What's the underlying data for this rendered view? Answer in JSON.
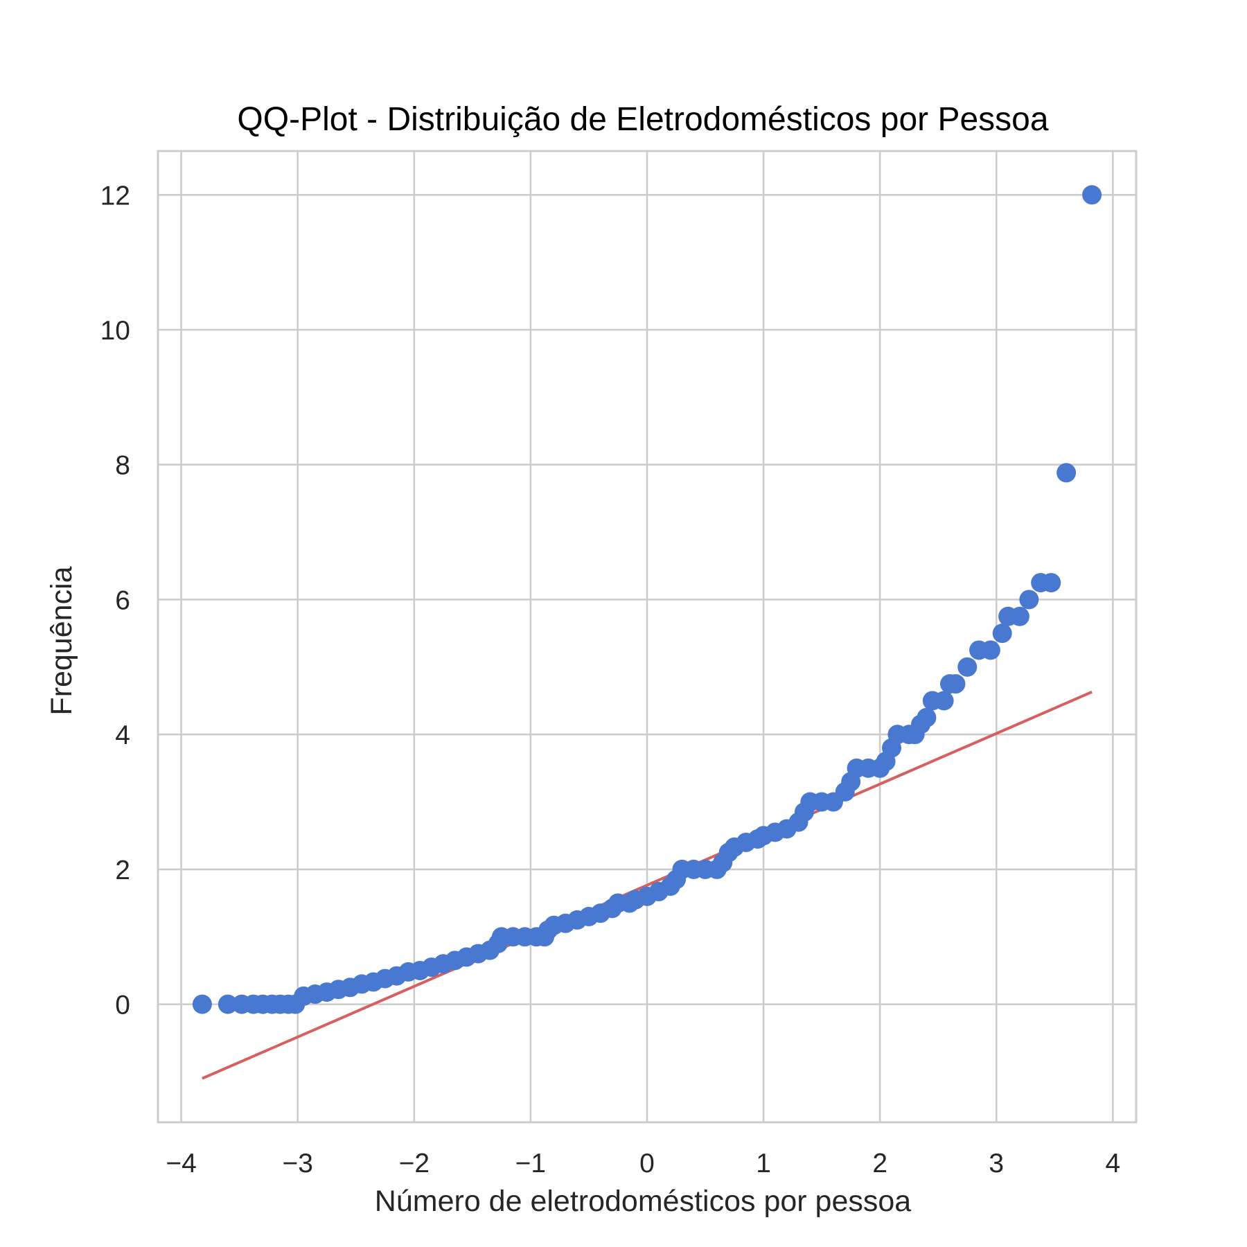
{
  "chart_data": {
    "type": "scatter",
    "title": "QQ-Plot - Distribuição de Eletrodomésticos por Pessoa",
    "xlabel": "Número de eletrodomésticos por pessoa",
    "ylabel": "Frequência",
    "xlim": [
      -4.2,
      4.2
    ],
    "ylim": [
      -1.75,
      12.65
    ],
    "x_ticks": [
      -4,
      -3,
      -2,
      -1,
      0,
      1,
      2,
      3,
      4
    ],
    "x_tick_labels": [
      "−4",
      "−3",
      "−2",
      "−1",
      "0",
      "1",
      "2",
      "3",
      "4"
    ],
    "y_ticks": [
      0,
      2,
      4,
      6,
      8,
      10,
      12
    ],
    "y_tick_labels": [
      "0",
      "2",
      "4",
      "6",
      "8",
      "10",
      "12"
    ],
    "grid": true,
    "colors": {
      "points": "#4878d0",
      "fit_line": "#d65f5f"
    },
    "series": [
      {
        "kind": "points",
        "points": [
          [
            -3.82,
            0.0
          ],
          [
            -3.6,
            0.0
          ],
          [
            -3.48,
            0.0
          ],
          [
            -3.38,
            0.0
          ],
          [
            -3.3,
            0.0
          ],
          [
            -3.22,
            0.0
          ],
          [
            -3.15,
            0.0
          ],
          [
            -3.08,
            0.0
          ],
          [
            -3.02,
            0.0
          ],
          [
            -2.95,
            0.12
          ],
          [
            -2.85,
            0.15
          ],
          [
            -2.75,
            0.18
          ],
          [
            -2.65,
            0.22
          ],
          [
            -2.55,
            0.25
          ],
          [
            -2.45,
            0.3
          ],
          [
            -2.35,
            0.33
          ],
          [
            -2.25,
            0.38
          ],
          [
            -2.15,
            0.42
          ],
          [
            -2.05,
            0.48
          ],
          [
            -1.95,
            0.5
          ],
          [
            -1.85,
            0.55
          ],
          [
            -1.75,
            0.6
          ],
          [
            -1.65,
            0.65
          ],
          [
            -1.55,
            0.7
          ],
          [
            -1.45,
            0.75
          ],
          [
            -1.35,
            0.8
          ],
          [
            -1.28,
            0.9
          ],
          [
            -1.25,
            1.0
          ],
          [
            -1.15,
            1.0
          ],
          [
            -1.05,
            1.0
          ],
          [
            -0.95,
            1.0
          ],
          [
            -0.88,
            1.0
          ],
          [
            -0.85,
            1.1
          ],
          [
            -0.8,
            1.17
          ],
          [
            -0.7,
            1.2
          ],
          [
            -0.6,
            1.25
          ],
          [
            -0.5,
            1.3
          ],
          [
            -0.4,
            1.35
          ],
          [
            -0.3,
            1.42
          ],
          [
            -0.25,
            1.5
          ],
          [
            -0.15,
            1.5
          ],
          [
            -0.1,
            1.55
          ],
          [
            0.0,
            1.6
          ],
          [
            0.1,
            1.67
          ],
          [
            0.2,
            1.75
          ],
          [
            0.25,
            1.85
          ],
          [
            0.3,
            2.0
          ],
          [
            0.4,
            2.0
          ],
          [
            0.5,
            2.0
          ],
          [
            0.6,
            2.0
          ],
          [
            0.65,
            2.1
          ],
          [
            0.7,
            2.25
          ],
          [
            0.75,
            2.33
          ],
          [
            0.85,
            2.4
          ],
          [
            0.95,
            2.45
          ],
          [
            1.0,
            2.5
          ],
          [
            1.1,
            2.55
          ],
          [
            1.2,
            2.6
          ],
          [
            1.3,
            2.7
          ],
          [
            1.35,
            2.85
          ],
          [
            1.4,
            3.0
          ],
          [
            1.5,
            3.0
          ],
          [
            1.6,
            3.0
          ],
          [
            1.7,
            3.15
          ],
          [
            1.75,
            3.3
          ],
          [
            1.8,
            3.5
          ],
          [
            1.9,
            3.5
          ],
          [
            2.0,
            3.5
          ],
          [
            2.05,
            3.6
          ],
          [
            2.1,
            3.8
          ],
          [
            2.15,
            4.0
          ],
          [
            2.25,
            4.0
          ],
          [
            2.3,
            4.0
          ],
          [
            2.35,
            4.15
          ],
          [
            2.4,
            4.25
          ],
          [
            2.45,
            4.5
          ],
          [
            2.55,
            4.5
          ],
          [
            2.6,
            4.75
          ],
          [
            2.65,
            4.75
          ],
          [
            2.75,
            5.0
          ],
          [
            2.85,
            5.25
          ],
          [
            2.95,
            5.25
          ],
          [
            3.05,
            5.5
          ],
          [
            3.1,
            5.75
          ],
          [
            3.2,
            5.75
          ],
          [
            3.28,
            6.0
          ],
          [
            3.38,
            6.25
          ],
          [
            3.47,
            6.25
          ],
          [
            3.6,
            7.88
          ],
          [
            3.82,
            12.0
          ]
        ]
      },
      {
        "kind": "line",
        "points": [
          [
            -3.82,
            -1.1
          ],
          [
            3.82,
            4.63
          ]
        ]
      }
    ]
  }
}
